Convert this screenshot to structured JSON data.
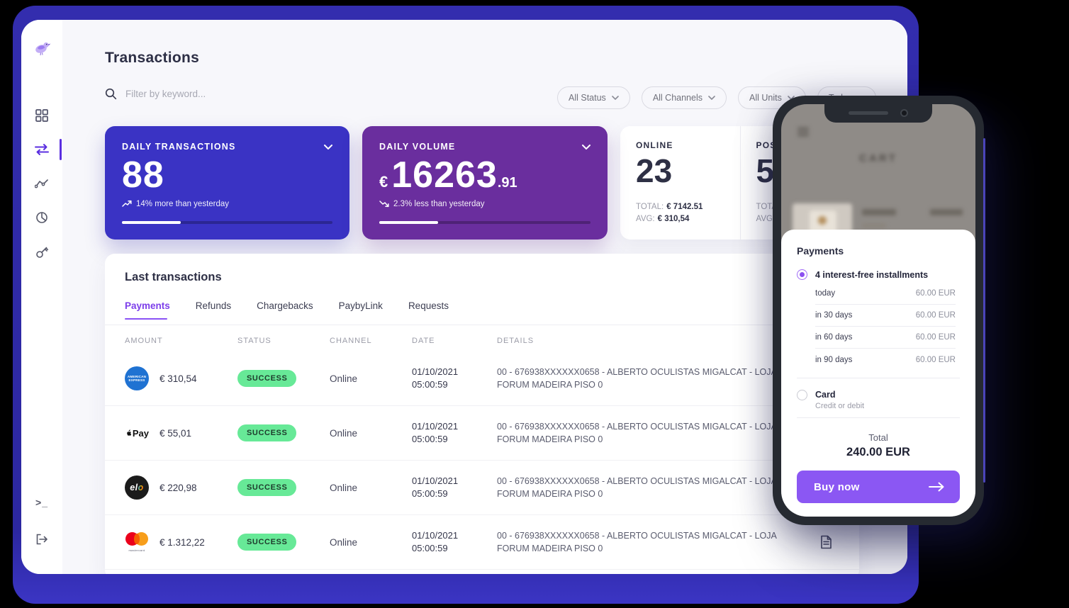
{
  "header": {
    "title": "Transactions",
    "search_placeholder": "Filter by keyword...",
    "filters": [
      "All Status",
      "All Channels",
      "All Units",
      "Today"
    ]
  },
  "stats": {
    "daily_transactions": {
      "label": "DAILY TRANSACTIONS",
      "value": "88",
      "trend": "14% more than yesterday",
      "trend_direction": "up",
      "progress_pct": 28,
      "bg_color": "#3a33c4"
    },
    "daily_volume": {
      "label": "DAILY VOLUME",
      "currency": "€",
      "value": "16263",
      "decimals": ".91",
      "trend": "2.3% less than yesterday",
      "trend_direction": "down",
      "progress_pct": 28,
      "bg_color": "#6a2e9e"
    },
    "online": {
      "label": "ONLINE",
      "value": "23",
      "total_label": "TOTAL:",
      "total_value": "€ 7142.51",
      "avg_label": "AVG:",
      "avg_value": "€ 310,54"
    },
    "pos": {
      "label": "POS",
      "value": "5",
      "total_label": "TOTAL:",
      "avg_label": "AVG:"
    }
  },
  "transactions": {
    "title": "Last transactions",
    "tabs": [
      {
        "label": "Payments",
        "active": true
      },
      {
        "label": "Refunds",
        "active": false
      },
      {
        "label": "Chargebacks",
        "active": false
      },
      {
        "label": "PaybyLink",
        "active": false
      },
      {
        "label": "Requests",
        "active": false
      }
    ],
    "columns": [
      "AMOUNT",
      "STATUS",
      "CHANNEL",
      "DATE",
      "DETAILS"
    ],
    "rows": [
      {
        "brand": "american-express",
        "amount": "€ 310,54",
        "status": "SUCCESS",
        "channel": "Online",
        "date": "01/10/2021",
        "time": "05:00:59",
        "details": "00 - 676938XXXXXX0658 - ALBERTO OCULISTAS MIGALCAT - LOJA FORUM MADEIRA PISO 0"
      },
      {
        "brand": "apple-pay",
        "amount": "€ 55,01",
        "status": "SUCCESS",
        "channel": "Online",
        "date": "01/10/2021",
        "time": "05:00:59",
        "details": "00 - 676938XXXXXX0658 - ALBERTO OCULISTAS MIGALCAT - LOJA FORUM MADEIRA PISO 0"
      },
      {
        "brand": "elo",
        "amount": "€ 220,98",
        "status": "SUCCESS",
        "channel": "Online",
        "date": "01/10/2021",
        "time": "05:00:59",
        "details": "00 - 676938XXXXXX0658 - ALBERTO OCULISTAS MIGALCAT - LOJA FORUM MADEIRA PISO 0"
      },
      {
        "brand": "mastercard",
        "amount": "€ 1.312,22",
        "status": "SUCCESS",
        "channel": "Online",
        "date": "01/10/2021",
        "time": "05:00:59",
        "details": "00 - 676938XXXXXX0658 - ALBERTO OCULISTAS MIGALCAT - LOJA FORUM MADEIRA PISO 0"
      }
    ],
    "amex_line1": "AMERICAN",
    "amex_line2": "EXPRESS",
    "apple_pay_text": "Pay",
    "elo_text_el": "el",
    "elo_text_o": "o",
    "mastercard_word": "mastercard"
  },
  "phone": {
    "cart_title": "CART",
    "sheet": {
      "title": "Payments",
      "installments_option": {
        "label": "4 interest-free installments",
        "selected": true,
        "schedule": [
          {
            "label": "today",
            "value": "60.00 EUR"
          },
          {
            "label": "in 30 days",
            "value": "60.00 EUR"
          },
          {
            "label": "in 60 days",
            "value": "60.00 EUR"
          },
          {
            "label": "in 90 days",
            "value": "60.00 EUR"
          }
        ]
      },
      "card_option": {
        "label": "Card",
        "sublabel": "Credit or debit",
        "selected": false
      },
      "total_label": "Total",
      "total_value": "240.00 EUR",
      "buy_button_label": "Buy now"
    }
  },
  "colors": {
    "frame": "#2f2aa6",
    "accent_purple": "#8b57f3",
    "tab_active": "#7c3eea",
    "success_badge_bg": "#67e997",
    "main_background": "#f7f7fb"
  },
  "sidebar_icons": [
    "logo",
    "dashboard",
    "transactions",
    "analytics",
    "reports",
    "access-keys",
    "terminal",
    "logout"
  ],
  "terminal_glyph": ">_"
}
